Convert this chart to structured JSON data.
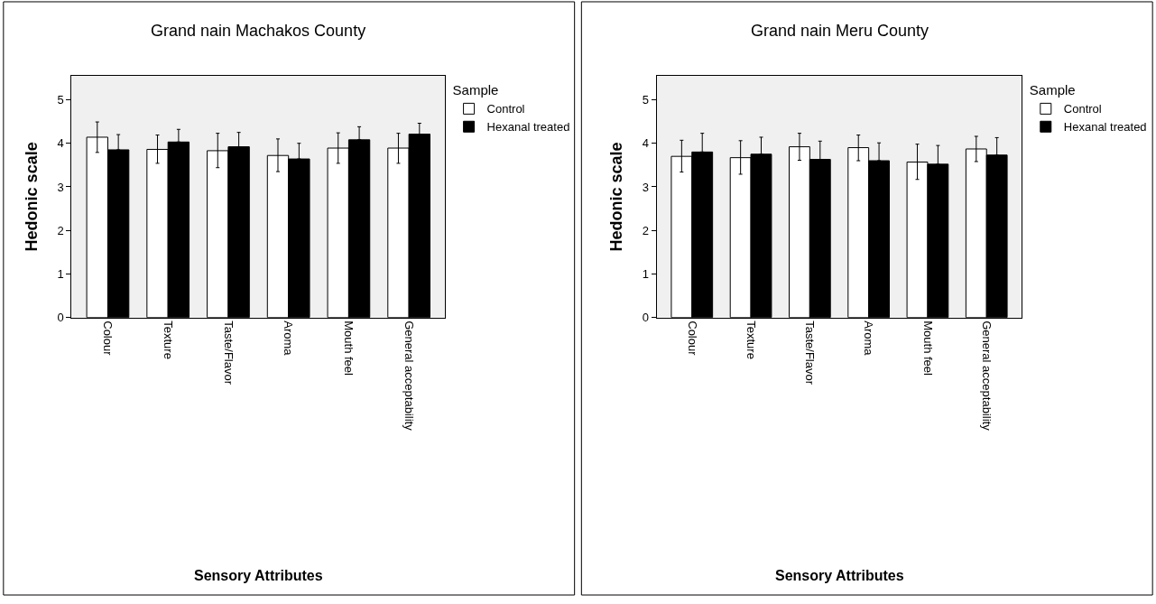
{
  "chart_data": [
    {
      "type": "bar",
      "title": "Grand nain Machakos County",
      "xlabel": "Sensory Attributes",
      "ylabel": "Hedonic scale",
      "legend_title": "Sample",
      "legend": "top right",
      "categories": [
        "Colour",
        "Texture",
        "Taste/Flavor",
        "Aroma",
        "Mouth feel",
        "General acceptability"
      ],
      "ylim": [
        0,
        5.55
      ],
      "yticks": [
        0,
        1,
        2,
        3,
        4,
        5
      ],
      "grid": false,
      "series": [
        {
          "name": "Control",
          "color": "#ffffff",
          "values": [
            4.14,
            3.86,
            3.83,
            3.72,
            3.89,
            3.89
          ],
          "errors": [
            [
              3.79,
              4.49
            ],
            [
              3.54,
              4.19
            ],
            [
              3.44,
              4.23
            ],
            [
              3.35,
              4.1
            ],
            [
              3.54,
              4.24
            ],
            [
              3.54,
              4.23
            ]
          ]
        },
        {
          "name": "Hexanal treated",
          "color": "#000000",
          "values": [
            3.85,
            4.03,
            3.92,
            3.64,
            4.08,
            4.21
          ],
          "errors": [
            [
              3.85,
              4.2
            ],
            [
              4.03,
              4.32
            ],
            [
              3.92,
              4.25
            ],
            [
              3.64,
              4.0
            ],
            [
              4.08,
              4.38
            ],
            [
              4.21,
              4.46
            ]
          ]
        }
      ]
    },
    {
      "type": "bar",
      "title": "Grand nain Meru County",
      "xlabel": "Sensory Attributes",
      "ylabel": "Hedonic scale",
      "legend_title": "Sample",
      "legend": "top right",
      "categories": [
        "Colour",
        "Texture",
        "Taste/Flavor",
        "Aroma",
        "Mouth feel",
        "General acceptability"
      ],
      "ylim": [
        0,
        5.55
      ],
      "yticks": [
        0,
        1,
        2,
        3,
        4,
        5
      ],
      "grid": false,
      "series": [
        {
          "name": "Control",
          "color": "#ffffff",
          "values": [
            3.7,
            3.67,
            3.92,
            3.9,
            3.57,
            3.87
          ],
          "errors": [
            [
              3.34,
              4.07
            ],
            [
              3.29,
              4.06
            ],
            [
              3.61,
              4.23
            ],
            [
              3.6,
              4.19
            ],
            [
              3.17,
              3.98
            ],
            [
              3.58,
              4.16
            ]
          ]
        },
        {
          "name": "Hexanal treated",
          "color": "#000000",
          "values": [
            3.8,
            3.75,
            3.63,
            3.6,
            3.52,
            3.73
          ],
          "errors": [
            [
              3.8,
              4.23
            ],
            [
              3.75,
              4.14
            ],
            [
              3.63,
              4.05
            ],
            [
              3.6,
              4.01
            ],
            [
              3.52,
              3.95
            ],
            [
              3.73,
              4.13
            ]
          ]
        }
      ]
    }
  ]
}
